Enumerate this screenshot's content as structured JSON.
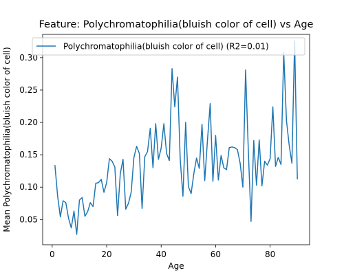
{
  "chart_data": {
    "type": "line",
    "title": "Feature: Polychromatophilia(bluish color of cell) vs Age",
    "xlabel": "Age",
    "ylabel": "Mean Polychromatophilia(bluish color of cell)",
    "xlim": [
      -3.5,
      94.5
    ],
    "ylim": [
      0.011,
      0.336
    ],
    "xticks": [
      "0",
      "20",
      "40",
      "60",
      "80"
    ],
    "yticks": [
      "0.05",
      "0.10",
      "0.15",
      "0.20",
      "0.25",
      "0.30"
    ],
    "legend_position": "upper-left",
    "grid": false,
    "series": [
      {
        "name": "Polychromatophilia(bluish color of cell) (R2=0.01)",
        "color": "#1f77b4",
        "x": [
          1,
          2,
          3,
          4,
          5,
          6,
          7,
          8,
          9,
          10,
          11,
          12,
          13,
          14,
          15,
          16,
          17,
          18,
          19,
          20,
          21,
          22,
          23,
          24,
          25,
          26,
          27,
          28,
          29,
          30,
          31,
          32,
          33,
          34,
          35,
          36,
          37,
          38,
          39,
          40,
          41,
          42,
          43,
          44,
          45,
          46,
          47,
          48,
          49,
          50,
          51,
          52,
          53,
          54,
          55,
          56,
          57,
          58,
          59,
          60,
          61,
          62,
          63,
          64,
          65,
          66,
          67,
          68,
          69,
          70,
          71,
          72,
          73,
          74,
          75,
          76,
          77,
          78,
          79,
          80,
          81,
          82,
          83,
          84,
          85,
          86,
          87,
          88,
          89,
          90
        ],
        "y": [
          0.134,
          0.086,
          0.054,
          0.079,
          0.076,
          0.052,
          0.037,
          0.063,
          0.027,
          0.08,
          0.084,
          0.055,
          0.062,
          0.076,
          0.07,
          0.106,
          0.107,
          0.112,
          0.092,
          0.107,
          0.144,
          0.14,
          0.131,
          0.056,
          0.121,
          0.143,
          0.066,
          0.075,
          0.092,
          0.146,
          0.163,
          0.152,
          0.067,
          0.147,
          0.155,
          0.191,
          0.13,
          0.198,
          0.143,
          0.16,
          0.198,
          0.152,
          0.141,
          0.283,
          0.224,
          0.27,
          0.143,
          0.086,
          0.2,
          0.101,
          0.09,
          0.121,
          0.145,
          0.129,
          0.197,
          0.11,
          0.172,
          0.229,
          0.109,
          0.18,
          0.111,
          0.149,
          0.13,
          0.127,
          0.161,
          0.162,
          0.161,
          0.158,
          0.137,
          0.1,
          0.281,
          0.157,
          0.047,
          0.172,
          0.103,
          0.173,
          0.102,
          0.14,
          0.134,
          0.144,
          0.224,
          0.132,
          0.146,
          0.135,
          0.308,
          0.203,
          0.165,
          0.137,
          0.326,
          0.112
        ]
      }
    ]
  }
}
